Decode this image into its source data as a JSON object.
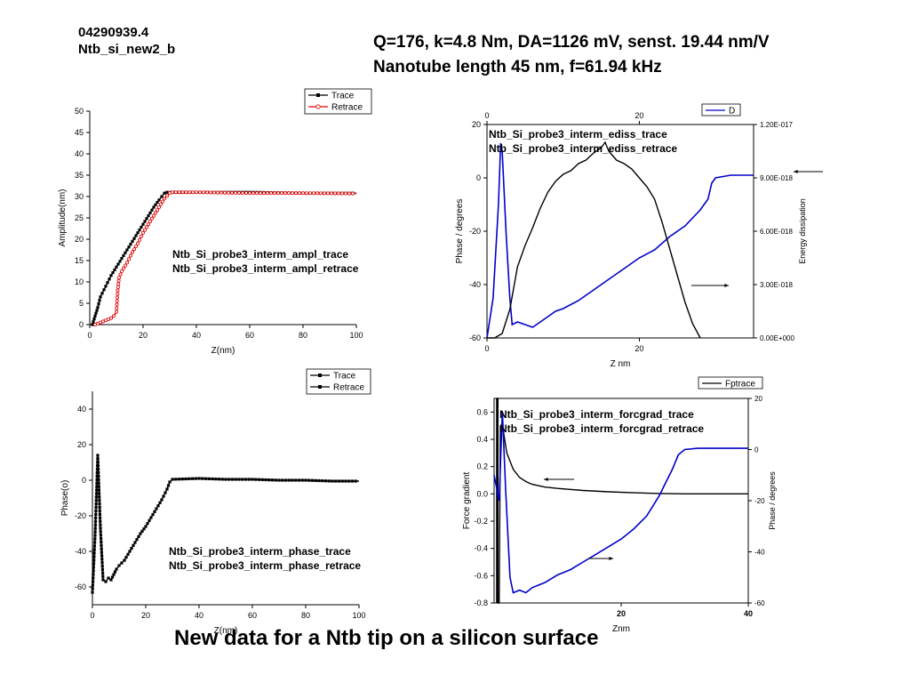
{
  "header": {
    "sample_id": "04290939.4",
    "sample_name": "Ntb_si_new2_b",
    "params_line1": "Q=176, k=4.8 Nm, DA=1126 mV, senst. 19.44 nm/V",
    "params_line2": "Nanotube length 45 nm, f=61.94 kHz"
  },
  "footer": {
    "title": "New data for a Ntb tip on a silicon surface"
  },
  "colors": {
    "trace": "#000000",
    "retrace_red": "#e00000",
    "blue": "#0000cc"
  },
  "chart_data": [
    {
      "id": "amplitude",
      "type": "line",
      "xlabel": "Z(nm)",
      "ylabel": "Amplitude(nm)",
      "xlim": [
        0,
        100
      ],
      "ylim": [
        0,
        50
      ],
      "xticks": [
        "0",
        "20",
        "40",
        "60",
        "80",
        "100"
      ],
      "yticks": [
        "0",
        "5",
        "10",
        "15",
        "20",
        "25",
        "30",
        "35",
        "40",
        "45",
        "50"
      ],
      "legend": [
        "Trace",
        "Retrace"
      ],
      "legend_position": "top-right",
      "annotations": [
        "Ntb_Si_probe3_interm_ampl_trace",
        "Ntb_Si_probe3_interm_ampl_retrace"
      ],
      "series": [
        {
          "name": "Trace",
          "color": "#000000",
          "marker": "square",
          "points": [
            [
              1,
              0
            ],
            [
              2,
              2
            ],
            [
              3,
              4
            ],
            [
              4,
              6.5
            ],
            [
              6,
              9
            ],
            [
              8,
              11.5
            ],
            [
              10,
              13.5
            ],
            [
              12,
              15.5
            ],
            [
              14,
              17.5
            ],
            [
              16,
              19.5
            ],
            [
              18,
              21.5
            ],
            [
              20,
              23.5
            ],
            [
              22,
              25.5
            ],
            [
              24,
              27.5
            ],
            [
              26,
              29.2
            ],
            [
              28,
              30.8
            ],
            [
              29,
              31
            ],
            [
              40,
              31
            ],
            [
              60,
              31
            ],
            [
              80,
              30.8
            ],
            [
              100,
              30.8
            ]
          ]
        },
        {
          "name": "Retrace",
          "color": "#e00000",
          "marker": "circle",
          "points": [
            [
              2,
              0
            ],
            [
              4,
              0.5
            ],
            [
              6,
              1
            ],
            [
              8,
              1.5
            ],
            [
              9,
              2
            ],
            [
              10,
              3
            ],
            [
              10.5,
              8
            ],
            [
              11,
              11
            ],
            [
              12,
              12.5
            ],
            [
              14,
              14.5
            ],
            [
              16,
              17
            ],
            [
              18,
              19
            ],
            [
              20,
              21.5
            ],
            [
              22,
              23.5
            ],
            [
              24,
              25.5
            ],
            [
              26,
              27.5
            ],
            [
              28,
              29.5
            ],
            [
              30,
              30.8
            ],
            [
              31,
              31
            ],
            [
              40,
              31
            ],
            [
              60,
              30.8
            ],
            [
              80,
              30.8
            ],
            [
              100,
              30.7
            ]
          ]
        }
      ]
    },
    {
      "id": "ediss",
      "type": "line",
      "xlabel": "Z nm",
      "ylabel": "Phase / degrees",
      "y2label": "Energy dissipation",
      "xlim": [
        0,
        35
      ],
      "ylim": [
        -60,
        20
      ],
      "y2lim": [
        0,
        1.2e-17
      ],
      "xticks": [
        "0",
        "20"
      ],
      "top_xticks": [
        "0",
        "20"
      ],
      "yticks": [
        "-60",
        "-40",
        "-20",
        "0",
        "20"
      ],
      "y2ticks": [
        "0.00E+000",
        "3.00E-018",
        "6.00E-018",
        "9.00E-018",
        "1.20E-017"
      ],
      "legend": [
        "D"
      ],
      "legend_position": "top-right",
      "annotations": [
        "Ntb_Si_probe3_interm_ediss_trace",
        "Ntb_Si_probe3_interm_ediss_retrace"
      ],
      "series": [
        {
          "name": "D",
          "color": "#0000cc",
          "axis": "left",
          "points": [
            [
              0,
              -60
            ],
            [
              0.8,
              -45
            ],
            [
              1.5,
              -10
            ],
            [
              1.8,
              13
            ],
            [
              2,
              10
            ],
            [
              2.5,
              -20
            ],
            [
              3,
              -45
            ],
            [
              3.3,
              -55
            ],
            [
              4,
              -54
            ],
            [
              5,
              -55
            ],
            [
              6,
              -56
            ],
            [
              7,
              -54
            ],
            [
              8,
              -52
            ],
            [
              9,
              -50
            ],
            [
              10,
              -49
            ],
            [
              12,
              -46
            ],
            [
              14,
              -42
            ],
            [
              16,
              -38
            ],
            [
              18,
              -34
            ],
            [
              20,
              -30
            ],
            [
              22,
              -27
            ],
            [
              24,
              -22
            ],
            [
              26,
              -18
            ],
            [
              28,
              -12
            ],
            [
              29,
              -8
            ],
            [
              29.5,
              -2
            ],
            [
              30,
              0
            ],
            [
              32,
              1
            ],
            [
              35,
              1
            ]
          ]
        },
        {
          "axis": "right",
          "color": "#000000",
          "points": [
            [
              0,
              0
            ],
            [
              1,
              0
            ],
            [
              2,
              2.5e-19
            ],
            [
              3,
              1.6e-18
            ],
            [
              4,
              4e-18
            ],
            [
              5,
              5.2e-18
            ],
            [
              6,
              6.2e-18
            ],
            [
              7,
              7.3e-18
            ],
            [
              8,
              8.2e-18
            ],
            [
              9,
              8.8e-18
            ],
            [
              10,
              9.2e-18
            ],
            [
              11,
              9.4e-18
            ],
            [
              12,
              9.8e-18
            ],
            [
              13,
              1e-17
            ],
            [
              14,
              1.04e-17
            ],
            [
              15,
              1.07e-17
            ],
            [
              15.5,
              1.1e-17
            ],
            [
              16,
              1.05e-17
            ],
            [
              17,
              1e-17
            ],
            [
              18,
              9.8e-18
            ],
            [
              19,
              9.5e-18
            ],
            [
              20,
              9e-18
            ],
            [
              21,
              8.5e-18
            ],
            [
              22,
              7.8e-18
            ],
            [
              23,
              6.5e-18
            ],
            [
              24,
              5e-18
            ],
            [
              25,
              3.5e-18
            ],
            [
              26,
              2e-18
            ],
            [
              27,
              8e-19
            ],
            [
              28,
              -5e-19
            ]
          ]
        }
      ]
    },
    {
      "id": "phase",
      "type": "line",
      "xlabel": "Z(nm)",
      "ylabel": "Phase(o)",
      "xlim": [
        0,
        100
      ],
      "ylim": [
        -70,
        50
      ],
      "xticks": [
        "0",
        "20",
        "40",
        "60",
        "80",
        "100"
      ],
      "yticks": [
        "-60",
        "-40",
        "-20",
        "0",
        "20",
        "40"
      ],
      "legend": [
        "Trace",
        "Retrace"
      ],
      "legend_position": "top-right",
      "annotations": [
        "Ntb_Si_probe3_interm_phase_trace",
        "Ntb_Si_probe3_interm_phase_retrace"
      ],
      "series": [
        {
          "name": "Trace",
          "color": "#000000",
          "marker": "square",
          "points": [
            [
              0,
              -63
            ],
            [
              1,
              -31
            ],
            [
              2,
              14
            ],
            [
              3,
              -27
            ],
            [
              4,
              -56
            ],
            [
              5,
              -57
            ],
            [
              6,
              -55
            ],
            [
              7,
              -56
            ],
            [
              8,
              -53
            ],
            [
              9,
              -50
            ],
            [
              10,
              -48
            ],
            [
              12,
              -45
            ],
            [
              14,
              -40
            ],
            [
              16,
              -35
            ],
            [
              18,
              -30
            ],
            [
              20,
              -26
            ],
            [
              22,
              -21
            ],
            [
              24,
              -16
            ],
            [
              26,
              -11
            ],
            [
              28,
              -5
            ],
            [
              29,
              -1
            ],
            [
              30,
              0.5
            ],
            [
              40,
              1
            ],
            [
              50,
              0.5
            ],
            [
              60,
              0.5
            ],
            [
              70,
              0
            ],
            [
              80,
              0
            ],
            [
              90,
              -0.5
            ],
            [
              100,
              -0.5
            ]
          ]
        }
      ]
    },
    {
      "id": "forcgrad",
      "type": "line",
      "xlabel": "Znm",
      "ylabel": "Force gradient",
      "y2label": "Phase / degrees",
      "xlim": [
        0,
        40
      ],
      "ylim": [
        -0.8,
        0.7
      ],
      "y2lim": [
        -60,
        20
      ],
      "xticks": [
        "20",
        "40"
      ],
      "yticks": [
        "-0.8",
        "-0.6",
        "-0.4",
        "-0.2",
        "0.0",
        "0.2",
        "0.4",
        "0.6"
      ],
      "y2ticks": [
        "-60",
        "-40",
        "-20",
        "0",
        "20"
      ],
      "legend": [
        "Fptrace"
      ],
      "legend_position": "top-right",
      "annotations": [
        "Ntb_Si_probe3_interm_forcgrad_trace",
        "Ntb_Si_probe3_interm_forcgrad_retrace"
      ],
      "series": [
        {
          "name": "Fptrace",
          "color": "#000000",
          "axis": "left",
          "points": [
            [
              0.4,
              -0.8
            ],
            [
              0.4,
              0.7
            ],
            [
              0.6,
              0.7
            ],
            [
              0.6,
              -0.8
            ],
            [
              0.8,
              -0.8
            ],
            [
              1,
              0.5
            ],
            [
              1.5,
              0.45
            ],
            [
              2,
              0.3
            ],
            [
              3,
              0.18
            ],
            [
              4,
              0.12
            ],
            [
              5,
              0.09
            ],
            [
              6,
              0.07
            ],
            [
              8,
              0.05
            ],
            [
              10,
              0.04
            ],
            [
              14,
              0.025
            ],
            [
              18,
              0.015
            ],
            [
              22,
              0.008
            ],
            [
              26,
              0.003
            ],
            [
              30,
              0
            ],
            [
              35,
              0
            ],
            [
              40,
              0
            ]
          ]
        },
        {
          "axis": "right",
          "color": "#0000cc",
          "points": [
            [
              0,
              -10
            ],
            [
              0.8,
              -20
            ],
            [
              1.3,
              15
            ],
            [
              1.8,
              -15
            ],
            [
              2.5,
              -50
            ],
            [
              3,
              -56
            ],
            [
              4,
              -55
            ],
            [
              5,
              -56
            ],
            [
              6,
              -54
            ],
            [
              8,
              -52
            ],
            [
              10,
              -49
            ],
            [
              12,
              -47
            ],
            [
              14,
              -44
            ],
            [
              16,
              -41
            ],
            [
              18,
              -38
            ],
            [
              20,
              -35
            ],
            [
              22,
              -31
            ],
            [
              24,
              -26
            ],
            [
              25,
              -22
            ],
            [
              26,
              -18
            ],
            [
              27,
              -13
            ],
            [
              28,
              -8
            ],
            [
              29,
              -2
            ],
            [
              30,
              0
            ],
            [
              32,
              0.5
            ],
            [
              35,
              0.5
            ],
            [
              40,
              0.5
            ]
          ]
        }
      ]
    }
  ]
}
